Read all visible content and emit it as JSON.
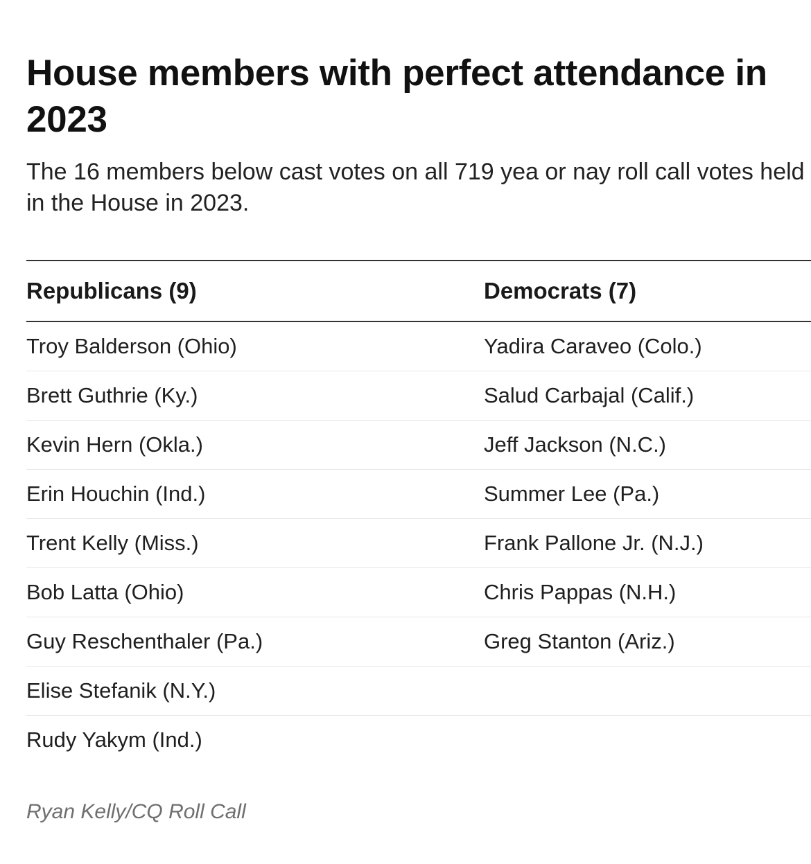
{
  "chart_data": {
    "type": "table",
    "title": "House members with perfect attendance in 2023",
    "subtitle": "The 16 members below cast votes on all 719 yea or nay roll call votes held in the House in 2023.",
    "columns": [
      "Republicans (9)",
      "Democrats (7)"
    ],
    "rows": [
      [
        "Troy Balderson (Ohio)",
        "Yadira Caraveo (Colo.)"
      ],
      [
        "Brett Guthrie (Ky.)",
        "Salud Carbajal (Calif.)"
      ],
      [
        "Kevin Hern (Okla.)",
        "Jeff Jackson (N.C.)"
      ],
      [
        "Erin Houchin (Ind.)",
        "Summer Lee (Pa.)"
      ],
      [
        "Trent Kelly (Miss.)",
        "Frank Pallone Jr. (N.J.)"
      ],
      [
        "Bob Latta (Ohio)",
        "Chris Pappas (N.H.)"
      ],
      [
        "Guy Reschenthaler (Pa.)",
        "Greg Stanton (Ariz.)"
      ],
      [
        "Elise Stefanik (N.Y.)",
        ""
      ],
      [
        "Rudy Yakym (Ind.)",
        ""
      ]
    ],
    "source": "Ryan Kelly/CQ Roll Call"
  },
  "colors": {
    "text": "#111111",
    "rule": "#333333",
    "row_divider": "#e6e6e6",
    "source_text": "#6f6f6f"
  }
}
